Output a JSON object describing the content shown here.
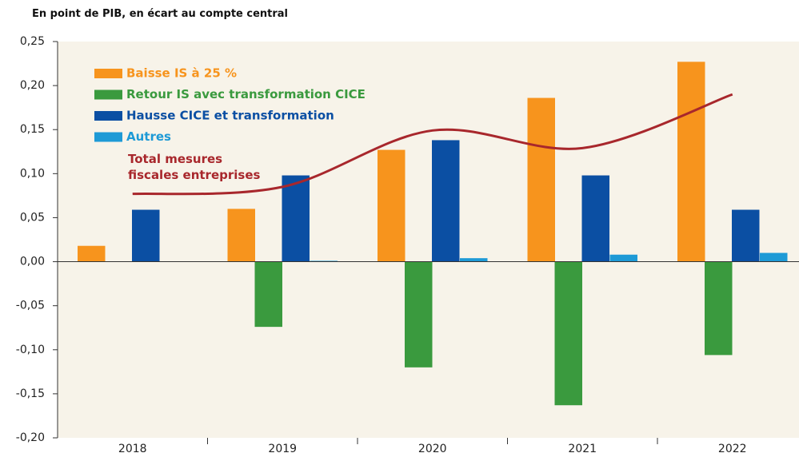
{
  "chart_data": {
    "type": "bar",
    "title": "En point de PIB, en écart au compte central",
    "categories": [
      "2018",
      "2019",
      "2020",
      "2021",
      "2022"
    ],
    "series": [
      {
        "name": "Baisse IS à 25 %",
        "type": "bar",
        "color": "#f7941d",
        "values": [
          0.018,
          0.06,
          0.127,
          0.186,
          0.227
        ]
      },
      {
        "name": "Retour IS avec transformation CICE",
        "type": "bar",
        "color": "#3a9a3e",
        "values": [
          0,
          -0.074,
          -0.12,
          -0.163,
          -0.106
        ]
      },
      {
        "name": "Hausse CICE et transformation",
        "type": "bar",
        "color": "#0b4fa3",
        "values": [
          0.059,
          0.098,
          0.138,
          0.098,
          0.059
        ]
      },
      {
        "name": "Autres",
        "type": "bar",
        "color": "#1e9ad6",
        "values": [
          0,
          0.001,
          0.004,
          0.008,
          0.01
        ]
      },
      {
        "name": "Total mesures fiscales entreprises",
        "type": "line",
        "color": "#a8272c",
        "values": [
          0.077,
          0.085,
          0.149,
          0.129,
          0.19
        ]
      }
    ],
    "ylim": [
      -0.2,
      0.25
    ],
    "yticks": [
      {
        "value": -0.2,
        "label": "-0,20"
      },
      {
        "value": -0.15,
        "label": "-0,15"
      },
      {
        "value": -0.1,
        "label": "-0,10"
      },
      {
        "value": -0.05,
        "label": "-0,05"
      },
      {
        "value": 0,
        "label": "0,00"
      },
      {
        "value": 0.05,
        "label": "0,05"
      },
      {
        "value": 0.1,
        "label": "0,10"
      },
      {
        "value": 0.15,
        "label": "0,15"
      },
      {
        "value": 0.2,
        "label": "0,20"
      },
      {
        "value": 0.25,
        "label": "0,25"
      }
    ]
  }
}
